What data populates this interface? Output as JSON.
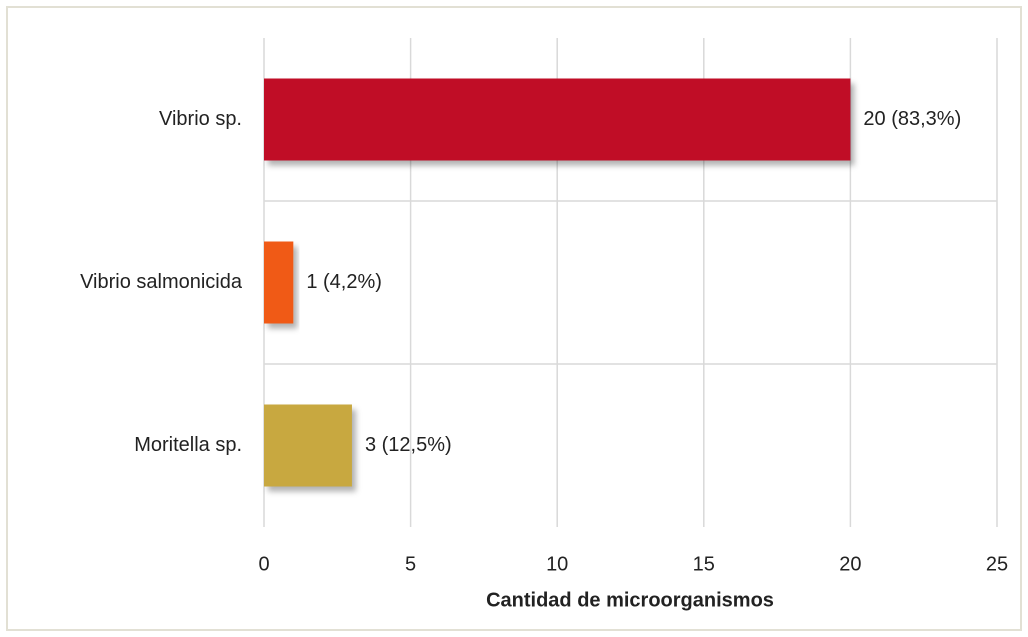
{
  "chart_data": {
    "type": "bar",
    "orientation": "horizontal",
    "x_label": "Cantidad de microorganismos",
    "categories": [
      "Vibrio sp.",
      "Vibrio salmonicida",
      "Moritella sp."
    ],
    "values": [
      20,
      1,
      3
    ],
    "value_labels": [
      "20 (83,3%)",
      "1 (4,2%)",
      "3 (12,5%)"
    ],
    "colors": [
      "#c00828",
      "#f05a18",
      "#c8a840"
    ],
    "xlim": [
      0,
      25
    ],
    "xticks": [
      0,
      5,
      10,
      15,
      20,
      25
    ],
    "grid": true
  }
}
